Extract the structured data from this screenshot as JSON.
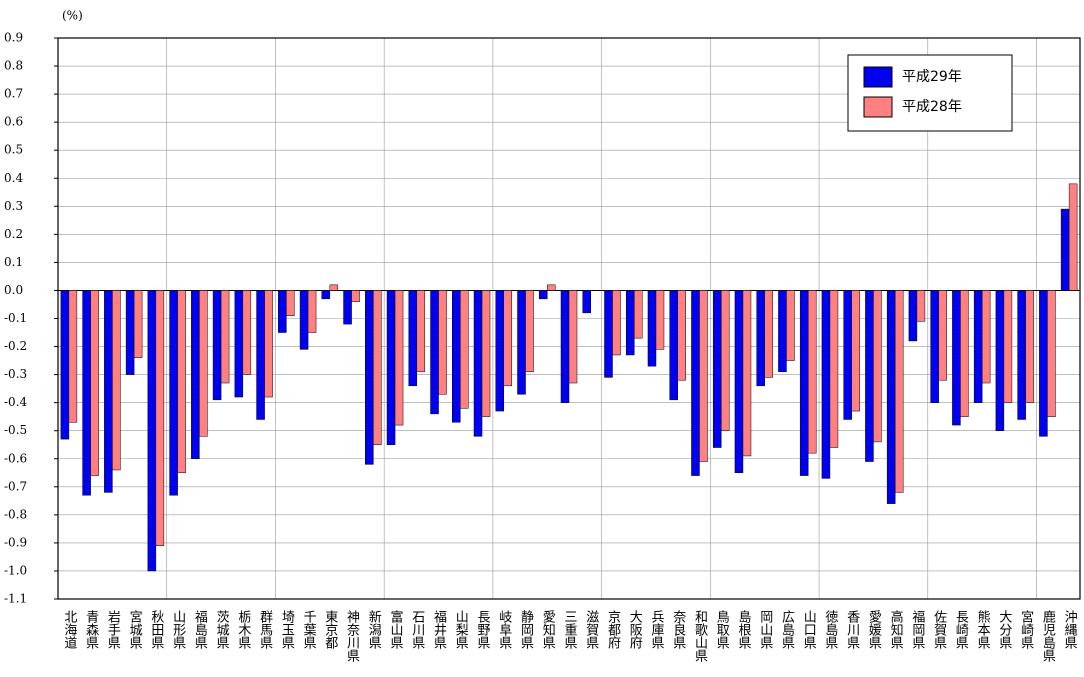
{
  "chart_data": {
    "type": "bar",
    "y_label": "(%)",
    "categories": [
      "北海道",
      "青森県",
      "岩手県",
      "宮城県",
      "秋田県",
      "山形県",
      "福島県",
      "茨城県",
      "栃木県",
      "群馬県",
      "埼玉県",
      "千葉県",
      "東京都",
      "神奈川県",
      "新潟県",
      "富山県",
      "石川県",
      "福井県",
      "山梨県",
      "長野県",
      "岐阜県",
      "静岡県",
      "愛知県",
      "三重県",
      "滋賀県",
      "京都府",
      "大阪府",
      "兵庫県",
      "奈良県",
      "和歌山県",
      "鳥取県",
      "島根県",
      "岡山県",
      "広島県",
      "山口県",
      "徳島県",
      "香川県",
      "愛媛県",
      "高知県",
      "福岡県",
      "佐賀県",
      "長崎県",
      "熊本県",
      "大分県",
      "宮崎県",
      "鹿児島県",
      "沖縄県"
    ],
    "series": [
      {
        "name": "平成29年",
        "color": "#0000ff",
        "values": [
          -0.53,
          -0.73,
          -0.72,
          -0.3,
          -1.0,
          -0.73,
          -0.6,
          -0.39,
          -0.38,
          -0.46,
          -0.15,
          -0.21,
          -0.03,
          -0.12,
          -0.62,
          -0.55,
          -0.34,
          -0.44,
          -0.47,
          -0.52,
          -0.43,
          -0.37,
          -0.03,
          -0.4,
          -0.08,
          -0.31,
          -0.23,
          -0.27,
          -0.39,
          -0.66,
          -0.56,
          -0.65,
          -0.34,
          -0.29,
          -0.66,
          -0.67,
          -0.46,
          -0.61,
          -0.76,
          -0.18,
          -0.4,
          -0.48,
          -0.4,
          -0.5,
          -0.46,
          -0.52,
          0.29
        ]
      },
      {
        "name": "平成28年",
        "color": "#ff8080",
        "values": [
          -0.47,
          -0.66,
          -0.64,
          -0.24,
          -0.91,
          -0.65,
          -0.52,
          -0.33,
          -0.3,
          -0.38,
          -0.09,
          -0.15,
          0.02,
          -0.04,
          -0.55,
          -0.48,
          -0.29,
          -0.37,
          -0.42,
          -0.45,
          -0.34,
          -0.29,
          0.02,
          -0.33,
          0.0,
          -0.23,
          -0.17,
          -0.21,
          -0.32,
          -0.61,
          -0.5,
          -0.59,
          -0.31,
          -0.25,
          -0.58,
          -0.56,
          -0.43,
          -0.54,
          -0.72,
          -0.11,
          -0.32,
          -0.45,
          -0.33,
          -0.4,
          -0.4,
          -0.45,
          0.38
        ]
      }
    ],
    "ylim": [
      -1.1,
      0.9
    ],
    "yticks": [
      0.9,
      0.8,
      0.7,
      0.6,
      0.5,
      0.4,
      0.3,
      0.2,
      0.1,
      {
        "value": 0,
        "label": "0.0"
      },
      -0.1,
      -0.2,
      -0.3,
      -0.4,
      -0.5,
      -0.6,
      -0.7,
      -0.8,
      -0.9,
      {
        "value": -1,
        "label": "-1.0"
      },
      -1.1
    ],
    "grid": true,
    "legend": "top-right"
  }
}
